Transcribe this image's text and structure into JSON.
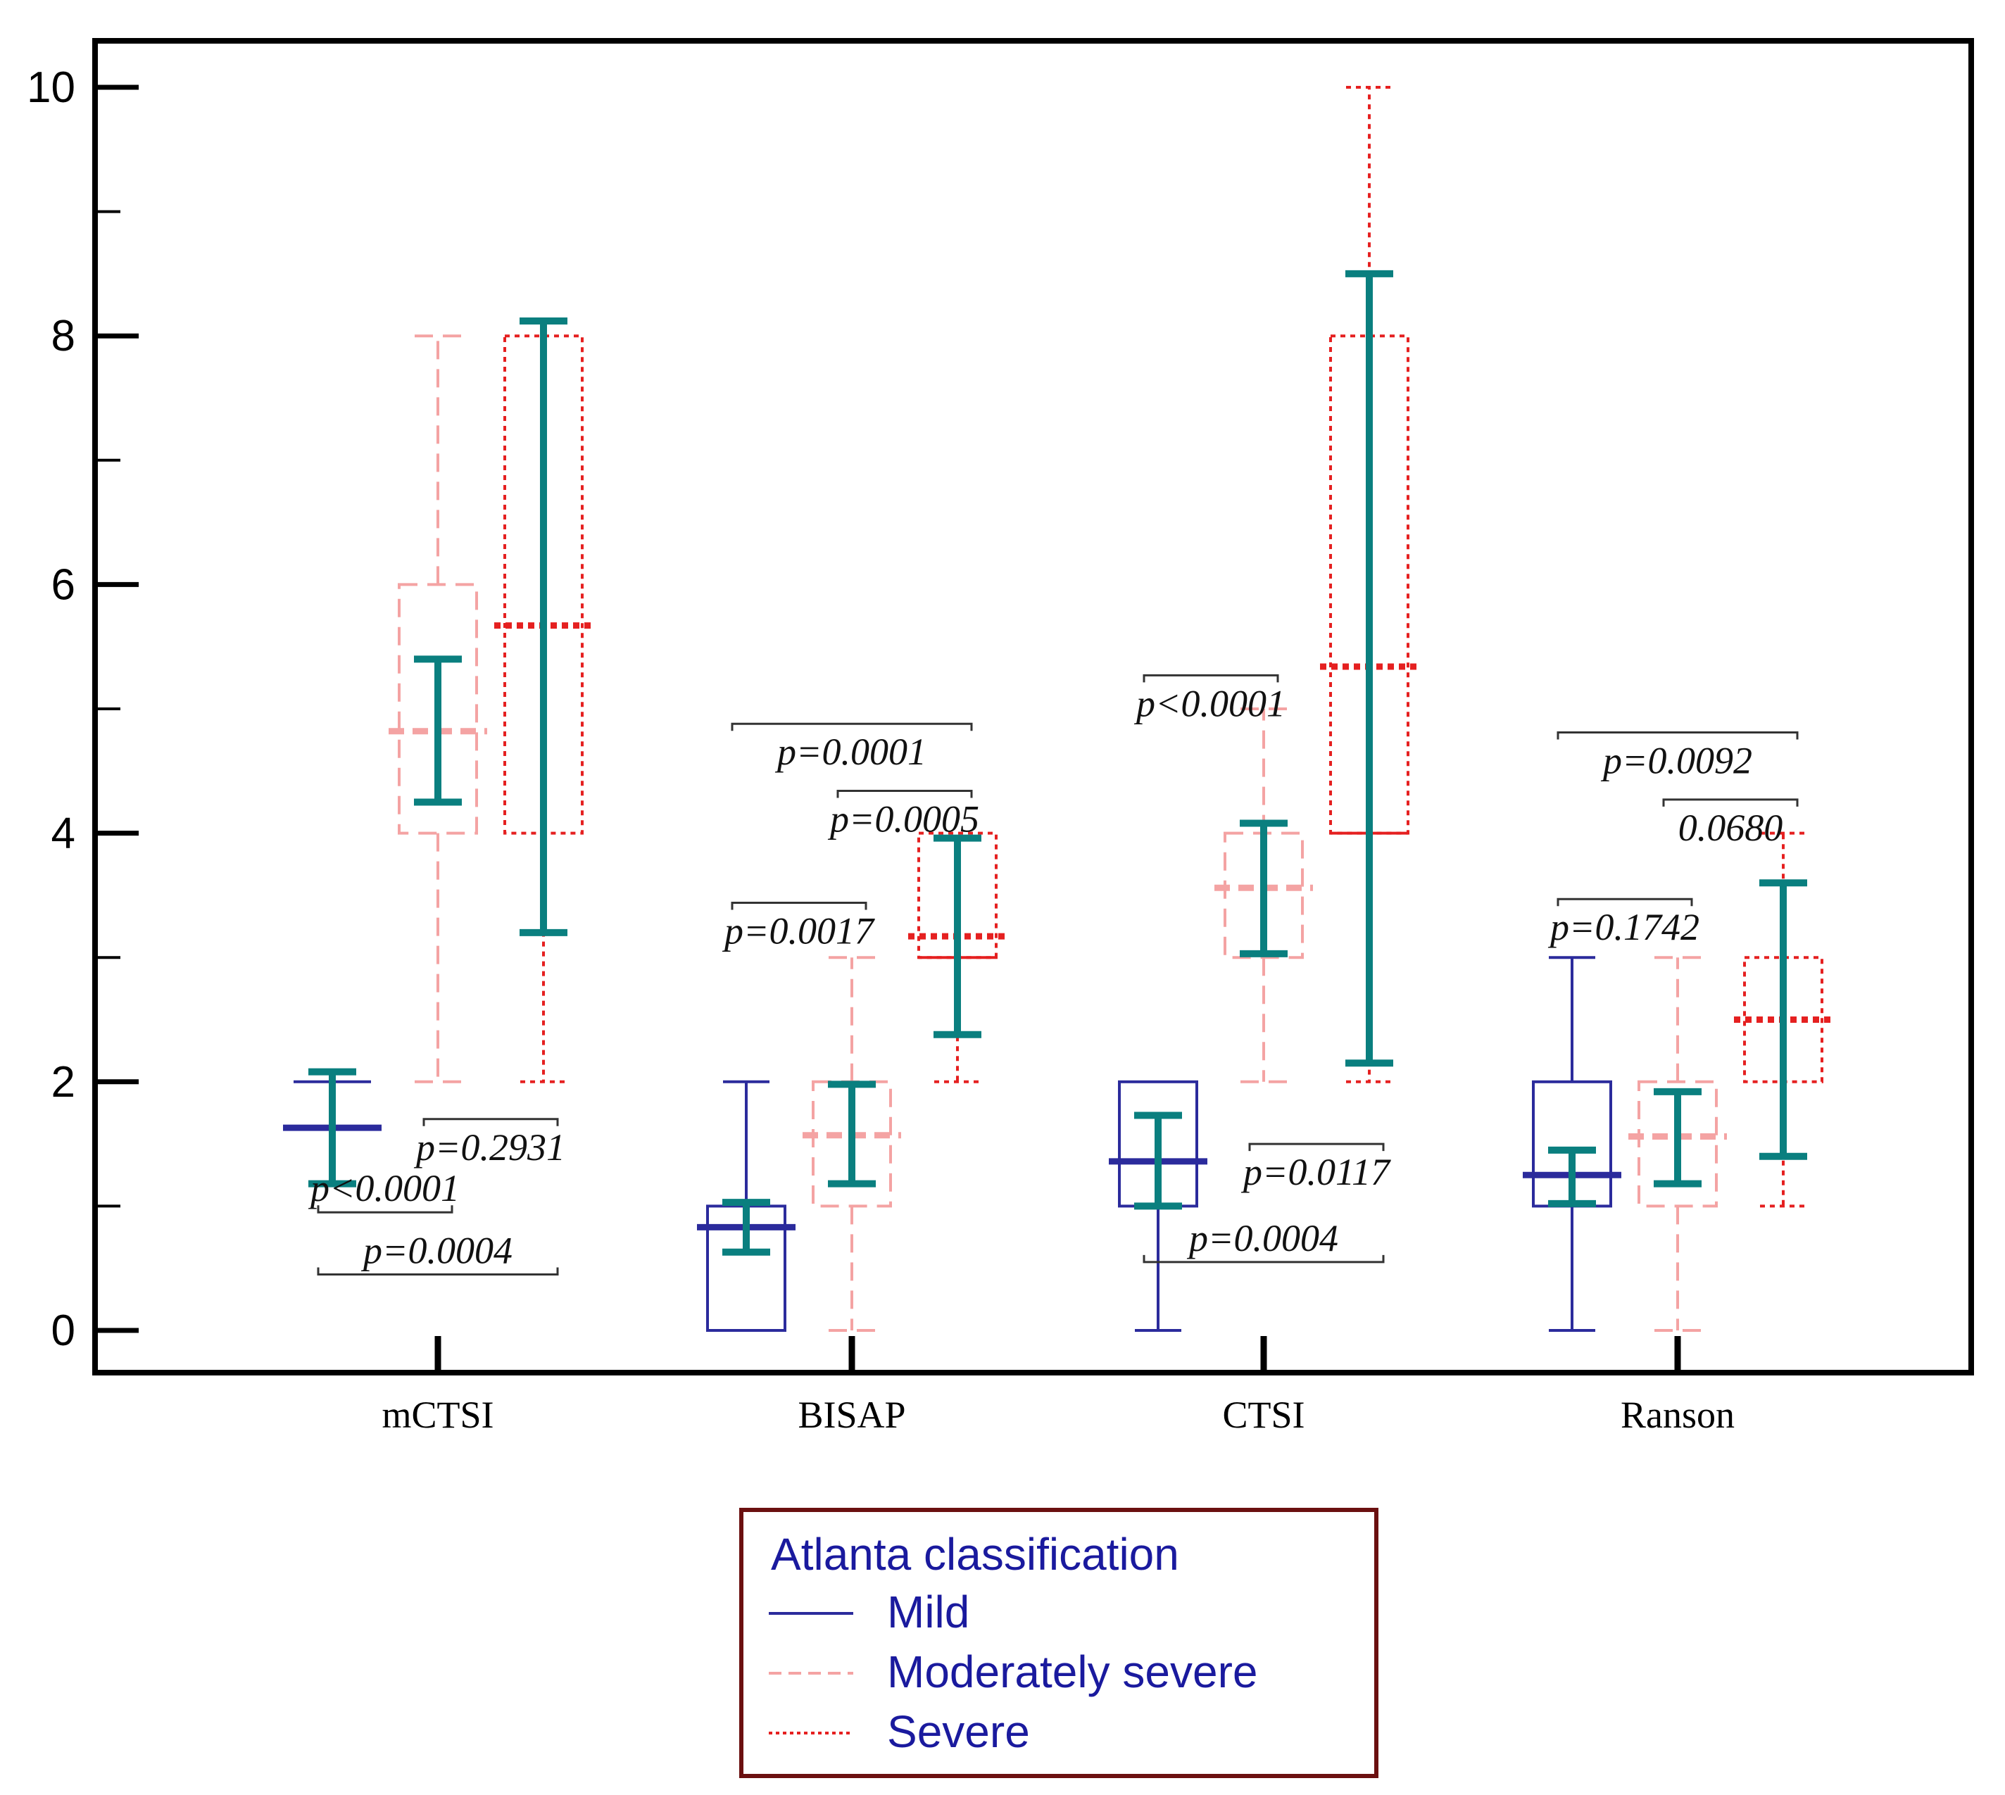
{
  "chart_data": {
    "type": "boxplot",
    "title": "",
    "xlabel": "",
    "ylabel": "",
    "ylim": [
      0,
      10
    ],
    "yticks": [
      0,
      2,
      4,
      6,
      8,
      10
    ],
    "grid": false,
    "categories": [
      "mCTSI",
      "BISAP",
      "CTSI",
      "Ranson"
    ],
    "series": [
      {
        "name": "Mild",
        "color": "#2b2b9c",
        "style": "solid",
        "boxes": [
          {
            "category": "mCTSI",
            "q1": 2,
            "q3": 2,
            "min": 2,
            "max": 2,
            "mean": 1.63,
            "ci": [
              1.18,
              2.08
            ]
          },
          {
            "category": "BISAP",
            "q1": 0,
            "q3": 1,
            "min": 0,
            "max": 2,
            "mean": 0.83,
            "ci": [
              0.63,
              1.03
            ]
          },
          {
            "category": "CTSI",
            "q1": 1,
            "q3": 2,
            "min": 0,
            "max": 2,
            "mean": 1.36,
            "ci": [
              1.0,
              1.73
            ]
          },
          {
            "category": "Ranson",
            "q1": 1,
            "q3": 2,
            "min": 0,
            "max": 3,
            "mean": 1.25,
            "ci": [
              1.02,
              1.45
            ]
          }
        ]
      },
      {
        "name": "Moderately severe",
        "color": "#f4a3a3",
        "style": "dashed",
        "boxes": [
          {
            "category": "mCTSI",
            "q1": 4,
            "q3": 6,
            "min": 2,
            "max": 8,
            "mean": 4.82,
            "ci": [
              4.25,
              5.4
            ]
          },
          {
            "category": "BISAP",
            "q1": 1,
            "q3": 2,
            "min": 0,
            "max": 3,
            "mean": 1.57,
            "ci": [
              1.18,
              1.98
            ]
          },
          {
            "category": "CTSI",
            "q1": 3,
            "q3": 4,
            "min": 2,
            "max": 5,
            "mean": 3.56,
            "ci": [
              3.03,
              4.08
            ]
          },
          {
            "category": "Ranson",
            "q1": 1,
            "q3": 2,
            "min": 0,
            "max": 3,
            "mean": 1.56,
            "ci": [
              1.18,
              1.92
            ]
          }
        ]
      },
      {
        "name": "Severe",
        "color": "#e52020",
        "style": "dotted",
        "boxes": [
          {
            "category": "mCTSI",
            "q1": 4,
            "q3": 8,
            "min": 2,
            "max": 8,
            "mean": 5.67,
            "ci": [
              3.2,
              8.12
            ]
          },
          {
            "category": "BISAP",
            "q1": 3,
            "q3": 4,
            "min": 2,
            "max": 4,
            "mean": 3.17,
            "ci": [
              2.38,
              3.96
            ]
          },
          {
            "category": "CTSI",
            "q1": 4,
            "q3": 8,
            "min": 2,
            "max": 10,
            "mean": 5.34,
            "ci": [
              2.15,
              8.5
            ]
          },
          {
            "category": "Ranson",
            "q1": 2,
            "q3": 3,
            "min": 1,
            "max": 4,
            "mean": 2.5,
            "ci": [
              1.4,
              3.6
            ]
          }
        ]
      }
    ],
    "ci_color": "#0a7f7f",
    "annotations": [
      {
        "text": "p=0.2931",
        "category": "mCTSI",
        "compare": [
          "Moderately severe",
          "Severe"
        ],
        "y": 1.7
      },
      {
        "text": "p<0.0001",
        "category": "mCTSI",
        "compare": [
          "Mild",
          "Moderately severe"
        ],
        "y": 0.95
      },
      {
        "text": "p=0.0004",
        "category": "mCTSI",
        "compare": [
          "Mild",
          "Severe"
        ],
        "y": 0.45
      },
      {
        "text": "p=0.0001",
        "category": "BISAP",
        "compare": [
          "Mild",
          "Severe"
        ],
        "y": 4.88
      },
      {
        "text": "p=0.0005",
        "category": "BISAP",
        "compare": [
          "Moderately severe",
          "Severe"
        ],
        "y": 4.34
      },
      {
        "text": "p=0.0017",
        "category": "BISAP",
        "compare": [
          "Mild",
          "Moderately severe"
        ],
        "y": 3.44
      },
      {
        "text": "p<0.0001",
        "category": "CTSI",
        "compare": [
          "Mild",
          "Moderately severe"
        ],
        "y": 5.27
      },
      {
        "text": "p=0.0117",
        "category": "CTSI",
        "compare": [
          "Moderately severe",
          "Severe"
        ],
        "y": 1.5
      },
      {
        "text": "p=0.0004",
        "category": "CTSI",
        "compare": [
          "Mild",
          "Severe"
        ],
        "y": 0.55
      },
      {
        "text": "p=0.0092",
        "category": "Ranson",
        "compare": [
          "Mild",
          "Severe"
        ],
        "y": 4.81
      },
      {
        "text": "0.0680",
        "category": "Ranson",
        "compare": [
          "Moderately severe",
          "Severe"
        ],
        "y": 4.27
      },
      {
        "text": "p=0.1742",
        "category": "Ranson",
        "compare": [
          "Mild",
          "Moderately severe"
        ],
        "y": 3.47
      }
    ],
    "legend": {
      "title": "Atlanta classification",
      "placement": "bottom-center",
      "items": [
        "Mild",
        "Moderately severe",
        "Severe"
      ]
    }
  }
}
